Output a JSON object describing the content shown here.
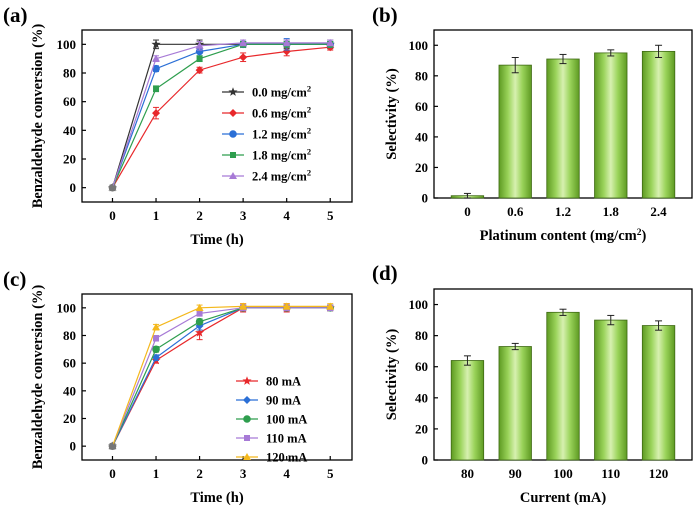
{
  "chart_data": [
    {
      "panel": "(a)",
      "type": "line",
      "xlabel": "Time (h)",
      "ylabel": "Benzaldehyde conversion (%)",
      "x": [
        0,
        1,
        2,
        3,
        4,
        5
      ],
      "xlim": [
        -0.7,
        5.5
      ],
      "ylim": [
        -10,
        110
      ],
      "xticks": [
        0,
        1,
        2,
        3,
        4,
        5
      ],
      "yticks": [
        0,
        20,
        40,
        60,
        80,
        100
      ],
      "legend_position": "center-right",
      "series": [
        {
          "name": "0.0 mg/cm",
          "sup": "2",
          "color": "#333333",
          "marker": "star",
          "values": [
            0,
            100,
            100,
            100,
            100,
            100
          ],
          "errors": [
            0,
            3,
            3,
            2,
            3,
            3
          ]
        },
        {
          "name": "0.6 mg/cm",
          "sup": "2",
          "color": "#e8282b",
          "marker": "diamond",
          "values": [
            0,
            52,
            82,
            91,
            95,
            98
          ],
          "errors": [
            0,
            4,
            2,
            3,
            3,
            2
          ]
        },
        {
          "name": "1.2 mg/cm",
          "sup": "2",
          "color": "#2b6fd6",
          "marker": "circle",
          "values": [
            0,
            83,
            95,
            100,
            100,
            100
          ],
          "errors": [
            0,
            2,
            3,
            2,
            4,
            2
          ]
        },
        {
          "name": "1.8 mg/cm",
          "sup": "2",
          "color": "#2e9e4e",
          "marker": "square",
          "values": [
            0,
            69,
            90,
            100,
            100,
            100
          ],
          "errors": [
            0,
            2,
            2,
            2,
            2,
            2
          ]
        },
        {
          "name": "2.4 mg/cm",
          "sup": "2",
          "color": "#a77ad6",
          "marker": "triangle",
          "values": [
            0,
            90,
            99,
            101,
            101,
            101
          ],
          "errors": [
            0,
            2,
            3,
            2,
            2,
            2
          ]
        }
      ]
    },
    {
      "panel": "(b)",
      "type": "bar",
      "xlabel": "Platinum content (mg/cm",
      "xlabel_sup": "2",
      "xlabel_end": ")",
      "ylabel": "Selectivity (%)",
      "categories": [
        "0",
        "0.6",
        "1.2",
        "1.8",
        "2.4"
      ],
      "values": [
        1.5,
        87,
        91,
        95,
        96
      ],
      "errors": [
        1.5,
        5,
        3,
        2,
        4
      ],
      "ylim": [
        0,
        110
      ],
      "yticks": [
        0,
        20,
        40,
        60,
        80,
        100
      ],
      "bar_color": "#8cd04a"
    },
    {
      "panel": "(c)",
      "type": "line",
      "xlabel": "Time (h)",
      "ylabel": "Benzaldehyde conversion (%)",
      "x": [
        0,
        1,
        2,
        3,
        4,
        5
      ],
      "xlim": [
        -0.7,
        5.5
      ],
      "ylim": [
        -10,
        110
      ],
      "xticks": [
        0,
        1,
        2,
        3,
        4,
        5
      ],
      "yticks": [
        0,
        20,
        40,
        60,
        80,
        100
      ],
      "legend_position": "bottom-right",
      "series": [
        {
          "name": "80 mA",
          "sup": "",
          "color": "#e8282b",
          "marker": "star",
          "values": [
            0,
            62,
            82,
            100,
            100,
            100
          ],
          "errors": [
            0,
            2,
            5,
            3,
            3,
            2
          ]
        },
        {
          "name": "90 mA",
          "sup": "",
          "color": "#2b6fd6",
          "marker": "diamond",
          "values": [
            0,
            64,
            87,
            100,
            100,
            100
          ],
          "errors": [
            0,
            2,
            3,
            2,
            2,
            2
          ]
        },
        {
          "name": "100 mA",
          "sup": "",
          "color": "#2e9e4e",
          "marker": "circle",
          "values": [
            0,
            70,
            90,
            100,
            100,
            100
          ],
          "errors": [
            0,
            2,
            2,
            2,
            2,
            2
          ]
        },
        {
          "name": "110 mA",
          "sup": "",
          "color": "#a77ad6",
          "marker": "square",
          "values": [
            0,
            78,
            96,
            100,
            100,
            100
          ],
          "errors": [
            0,
            2,
            2,
            2,
            2,
            2
          ]
        },
        {
          "name": "120 mA",
          "sup": "",
          "color": "#f4b81c",
          "marker": "triangle",
          "values": [
            0,
            86,
            100,
            101,
            101,
            101
          ],
          "errors": [
            0,
            2,
            2,
            2,
            2,
            2
          ]
        }
      ]
    },
    {
      "panel": "(d)",
      "type": "bar",
      "xlabel": "Current (mA)",
      "xlabel_sup": "",
      "xlabel_end": "",
      "ylabel": "Selectivity (%)",
      "categories": [
        "80",
        "90",
        "100",
        "110",
        "120"
      ],
      "values": [
        64,
        73,
        95,
        90,
        86.5
      ],
      "errors": [
        3,
        2,
        2,
        3,
        3
      ],
      "ylim": [
        0,
        110
      ],
      "yticks": [
        0,
        20,
        40,
        60,
        80,
        100
      ],
      "bar_color": "#8cd04a"
    }
  ]
}
